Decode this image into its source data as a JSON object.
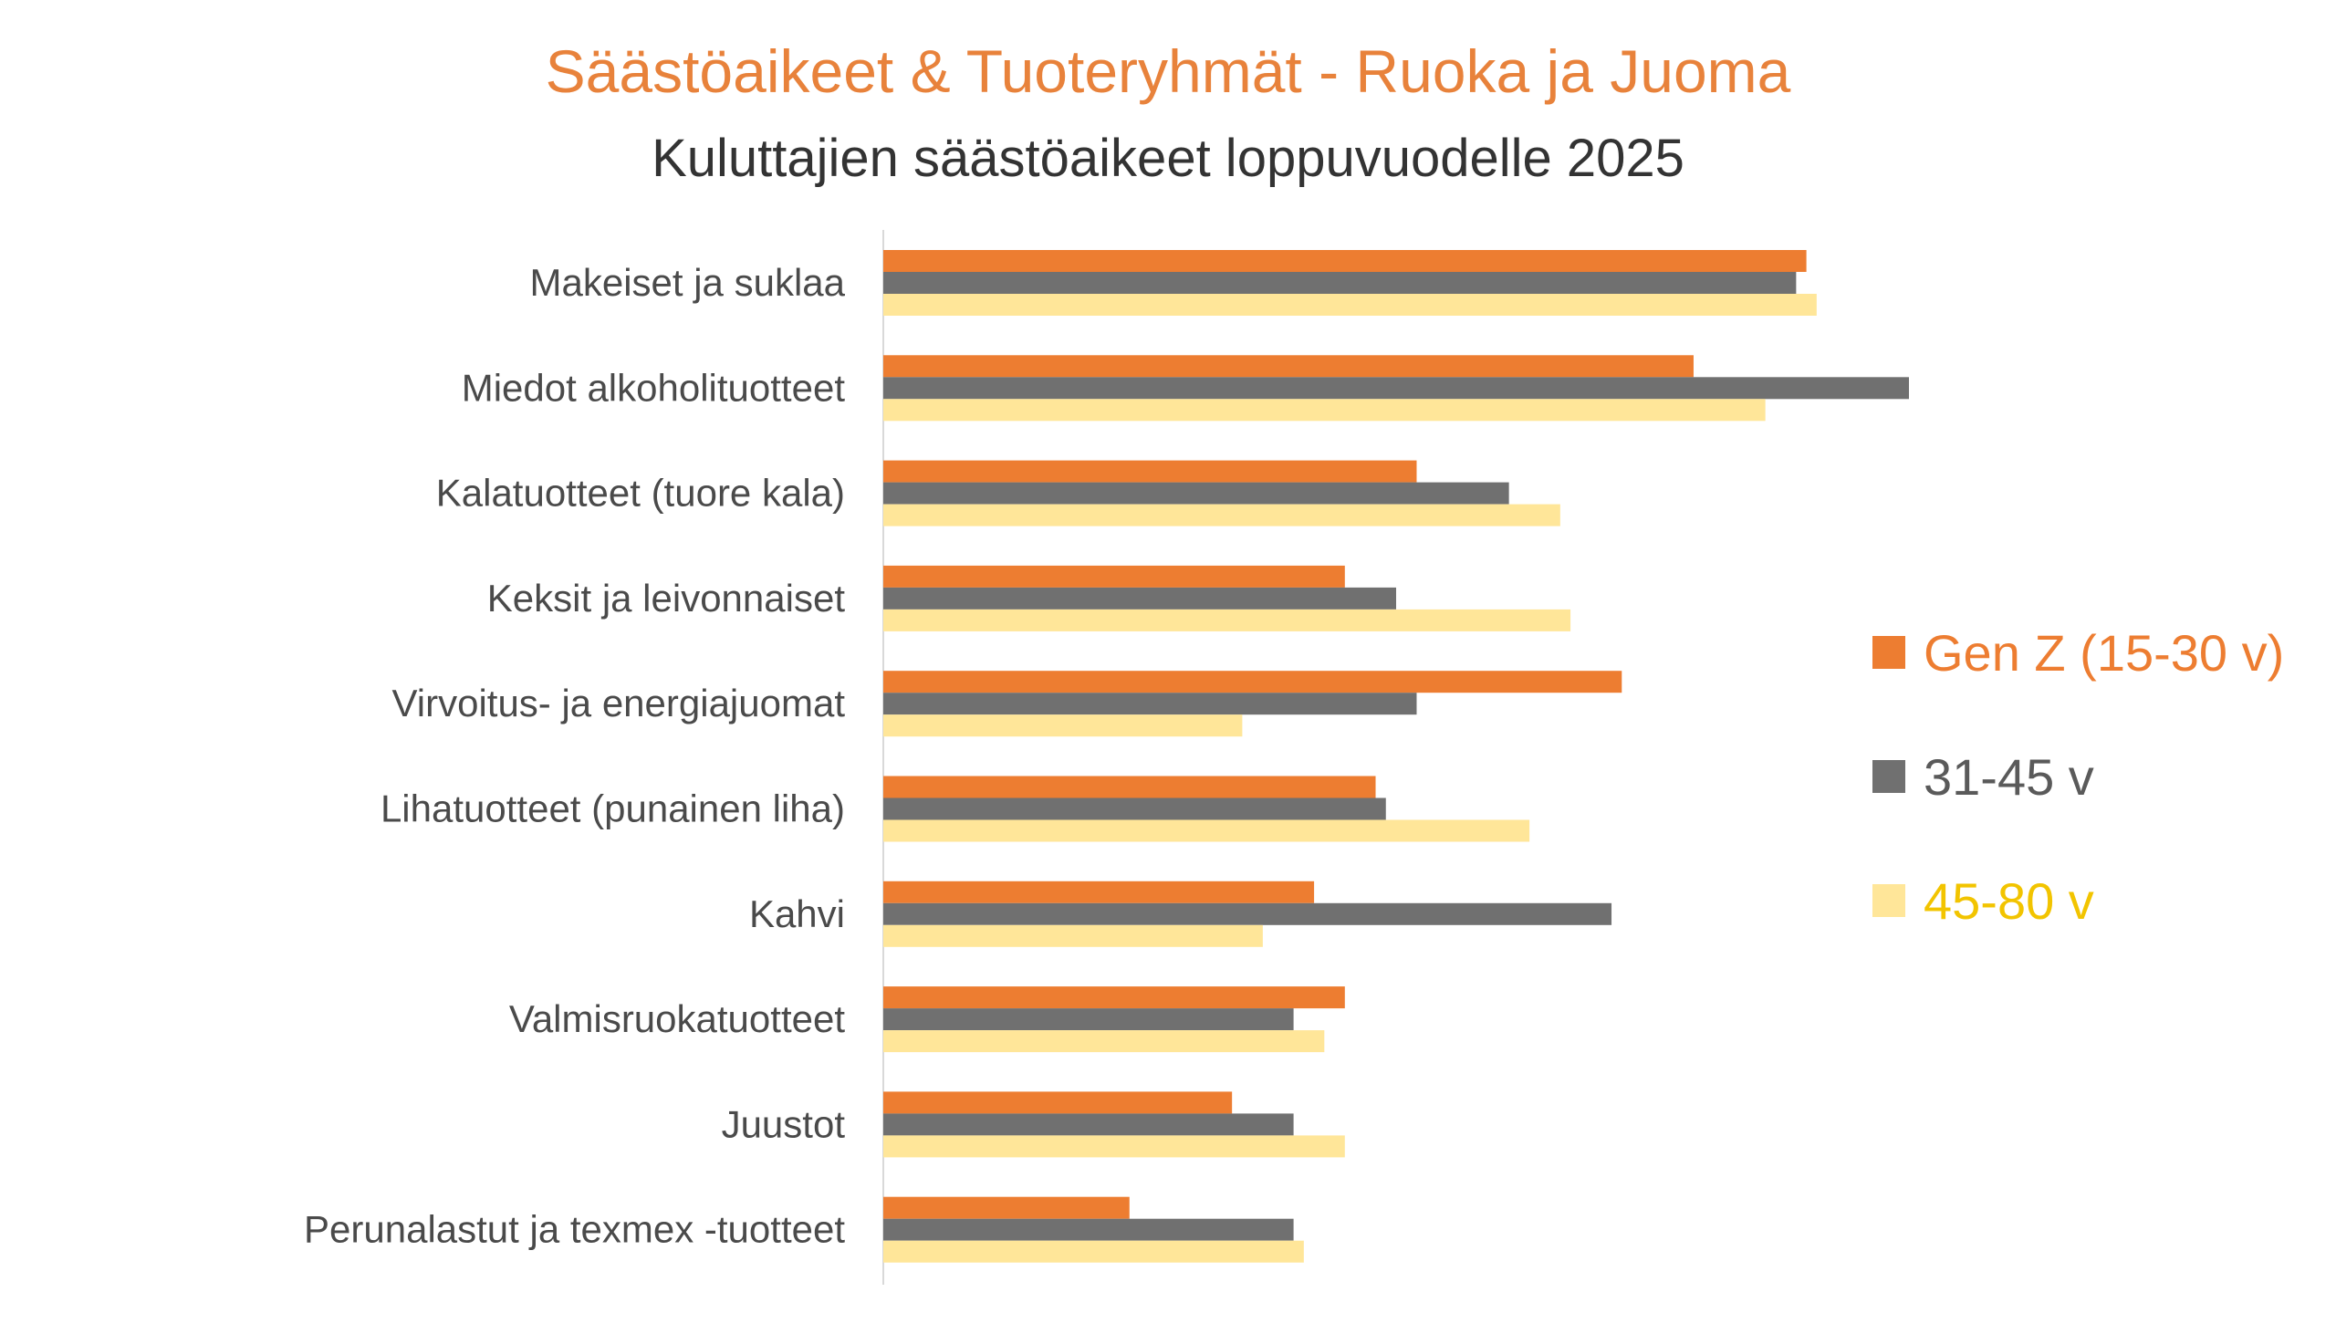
{
  "chart_data": {
    "type": "bar",
    "orientation": "horizontal",
    "title": "Säästöaikeet & Tuoteryhmät - Ruoka ja Juoma",
    "subtitle": "Kuluttajien säästöaikeet loppuvuodelle 2025",
    "xlabel": "",
    "ylabel": "",
    "xlim": [
      0,
      1
    ],
    "grid": false,
    "legend_position": "right",
    "categories": [
      "Makeiset ja suklaa",
      "Miedot alkoholituotteet",
      "Kalatuotteet (tuore kala)",
      "Keksit ja leivonnaiset",
      "Virvoitus- ja energiajuomat",
      "Lihatuotteet (punainen liha)",
      "Kahvi",
      "Valmisruokatuotteet",
      "Juustot",
      "Perunalastut ja texmex -tuotteet"
    ],
    "series": [
      {
        "name": "Gen Z (15-30 v)",
        "color": "#ed7d31",
        "label_color": "#ed7d31",
        "values": [
          0.9,
          0.79,
          0.52,
          0.45,
          0.72,
          0.48,
          0.42,
          0.45,
          0.34,
          0.24
        ]
      },
      {
        "name": "31-45 v",
        "color": "#707070",
        "label_color": "#5a5a5a",
        "values": [
          0.89,
          1.0,
          0.61,
          0.5,
          0.52,
          0.49,
          0.71,
          0.4,
          0.4,
          0.4
        ]
      },
      {
        "name": "45-80 v",
        "color": "#ffe699",
        "label_color": "#f2c400",
        "values": [
          0.91,
          0.86,
          0.66,
          0.67,
          0.35,
          0.63,
          0.37,
          0.43,
          0.45,
          0.41
        ]
      }
    ]
  }
}
